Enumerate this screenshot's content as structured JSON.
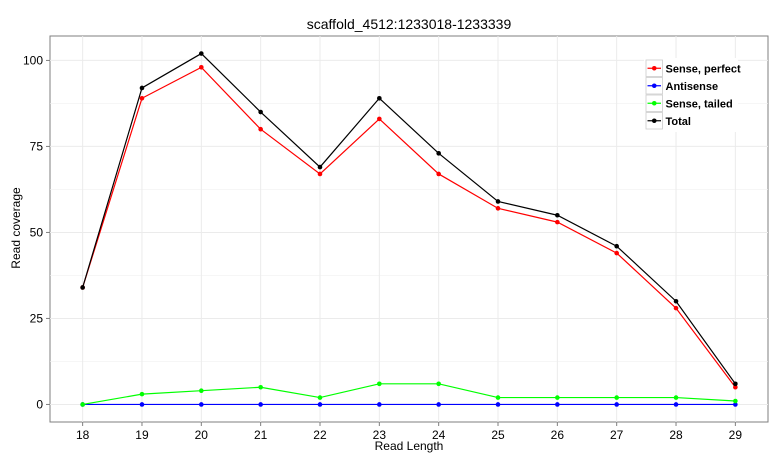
{
  "chart_data": {
    "type": "line",
    "title": "scaffold_4512:1233018-1233339",
    "xlabel": "Read Length",
    "ylabel": "Read coverage",
    "x": [
      18,
      19,
      20,
      21,
      22,
      23,
      24,
      25,
      26,
      27,
      28,
      29
    ],
    "xlim": [
      17.45,
      29.55
    ],
    "ylim": [
      -5.1,
      107.1
    ],
    "yticks": [
      0,
      25,
      50,
      75,
      100
    ],
    "grid": true,
    "legend_position": "top-right",
    "series": [
      {
        "name": "Sense, perfect",
        "color": "#ff0000",
        "values": [
          34,
          89,
          98,
          80,
          67,
          83,
          67,
          57,
          53,
          44,
          28,
          5
        ]
      },
      {
        "name": "Antisense",
        "color": "#0000ff",
        "values": [
          0,
          0,
          0,
          0,
          0,
          0,
          0,
          0,
          0,
          0,
          0,
          0
        ]
      },
      {
        "name": "Sense, tailed",
        "color": "#00ff00",
        "values": [
          0,
          3,
          4,
          5,
          2,
          6,
          6,
          2,
          2,
          2,
          2,
          1
        ]
      },
      {
        "name": "Total",
        "color": "#000000",
        "values": [
          34,
          92,
          102,
          85,
          69,
          89,
          73,
          59,
          55,
          46,
          30,
          6
        ]
      }
    ]
  }
}
